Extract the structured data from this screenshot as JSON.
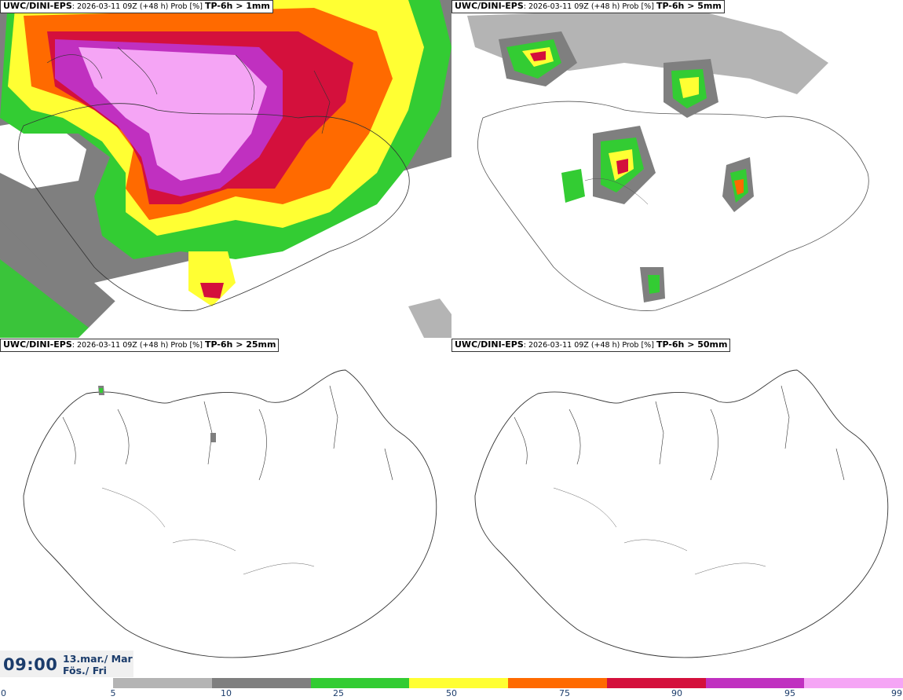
{
  "panels": [
    {
      "model": "UWC/DINI-EPS",
      "run": ": 2026-03-11 09Z (+48 h) Prob [%]",
      "field": "TP-6h > 1mm"
    },
    {
      "model": "UWC/DINI-EPS",
      "run": ": 2026-03-11 09Z (+48 h) Prob [%]",
      "field": "TP-6h > 5mm"
    },
    {
      "model": "UWC/DINI-EPS",
      "run": ": 2026-03-11 09Z (+48 h) Prob [%]",
      "field": "TP-6h > 25mm"
    },
    {
      "model": "UWC/DINI-EPS",
      "run": ": 2026-03-11 09Z (+48 h) Prob [%]",
      "field": "TP-6h > 50mm"
    }
  ],
  "valid_time": {
    "time": "09:00",
    "date_line1": "13.mar./ Mar",
    "date_line2": "Fös./ Fri"
  },
  "colorbar": {
    "ticks": [
      "0",
      "5",
      "10",
      "25",
      "50",
      "75",
      "90",
      "95",
      "99"
    ],
    "colors": [
      "#b4b4b4",
      "#7f7f7f",
      "#33cc33",
      "#ffff33",
      "#ff6a00",
      "#d4103c",
      "#c030c0",
      "#f5a5f5"
    ]
  }
}
